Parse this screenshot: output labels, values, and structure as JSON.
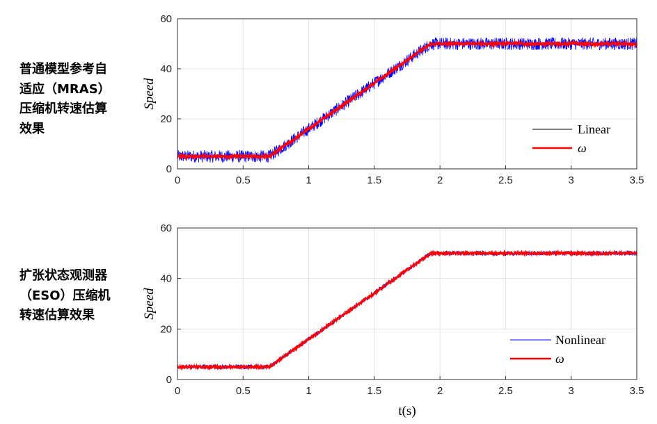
{
  "captions": {
    "top": [
      "普通模型参考自",
      "适应（MRAS）",
      "压缩机转速估算",
      "效果"
    ],
    "bottom": [
      "扩张状态观测器",
      "（ESO）压缩机",
      "转速估算效果"
    ]
  },
  "chart_data": [
    {
      "type": "line",
      "ylabel": "Speed",
      "xlabel": "",
      "xlim": [
        0,
        3.5
      ],
      "ylim": [
        0,
        60
      ],
      "xticks": [
        "0",
        "0.5",
        "1",
        "1.5",
        "2",
        "2.5",
        "3",
        "3.5"
      ],
      "yticks": [
        "0",
        "20",
        "40",
        "60"
      ],
      "grid": true,
      "legend_position": "bottom-right",
      "profile": {
        "x": [
          0,
          0.7,
          1.93,
          3.5
        ],
        "y": [
          5,
          5,
          50,
          50
        ]
      },
      "series": [
        {
          "name": "Linear",
          "legend_color": "#000000",
          "color": "#0000ff",
          "noise_amplitude": 2.5
        },
        {
          "name": "ω",
          "color": "#ff0000",
          "noise_amplitude": 0.6
        }
      ]
    },
    {
      "type": "line",
      "ylabel": "Speed",
      "xlabel": "t(s)",
      "xlim": [
        0,
        3.5
      ],
      "ylim": [
        0,
        60
      ],
      "xticks": [
        "0",
        "0.5",
        "1",
        "1.5",
        "2",
        "2.5",
        "3",
        "3.5"
      ],
      "yticks": [
        "0",
        "20",
        "40",
        "60"
      ],
      "grid": true,
      "legend_position": "bottom-right",
      "profile": {
        "x": [
          0,
          0.7,
          1.93,
          3.5
        ],
        "y": [
          5,
          5,
          50,
          50
        ]
      },
      "series": [
        {
          "name": "Nonlinear",
          "legend_color": "#0000ff",
          "color": "#0000ff",
          "noise_amplitude": 0.9
        },
        {
          "name": "ω",
          "color": "#ff0000",
          "noise_amplitude": 0.4
        }
      ]
    }
  ]
}
